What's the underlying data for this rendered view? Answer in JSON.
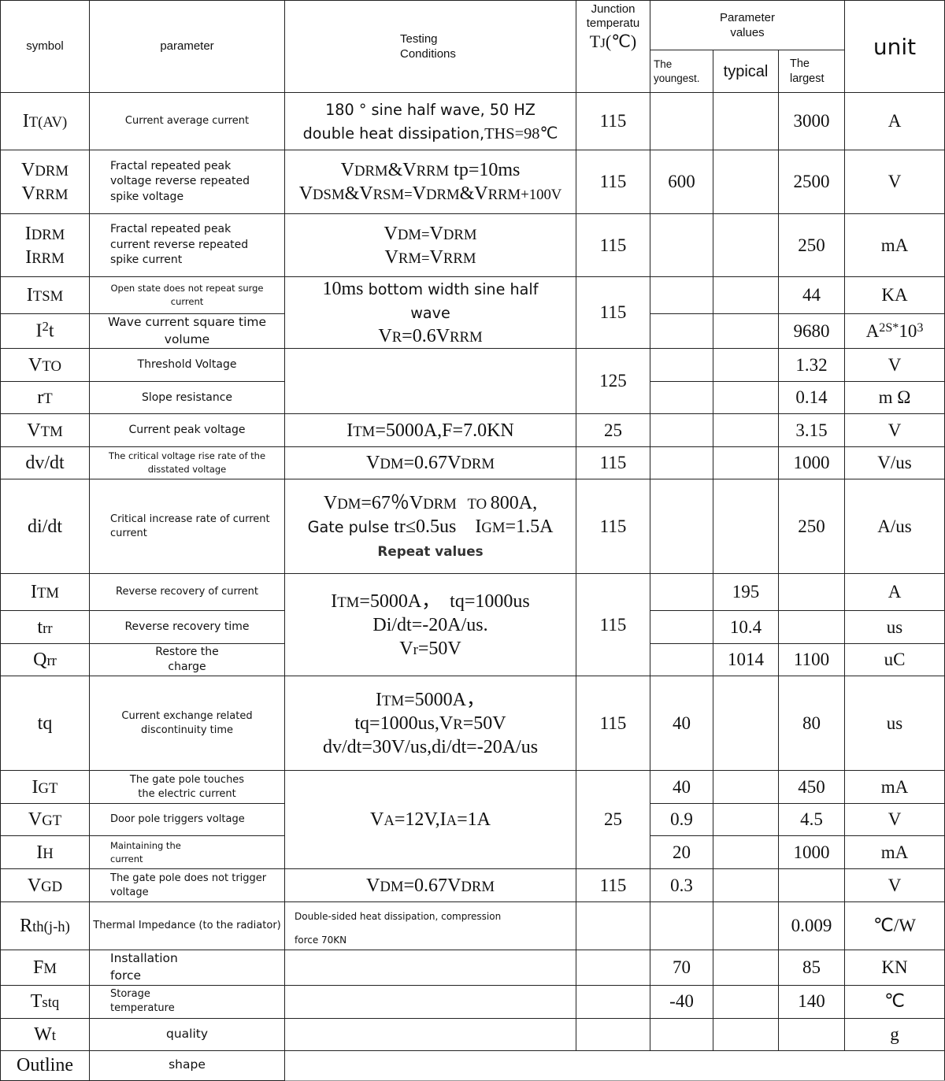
{
  "header": {
    "symbol": "symbol",
    "parameter": "parameter",
    "conditions": [
      "Testing",
      "Conditions"
    ],
    "tj": [
      "Junction",
      "temperatu"
    ],
    "tj_symbol": [
      [
        "T",
        ""
      ],
      [
        "J",
        "s"
      ],
      [
        "(℃)",
        ""
      ]
    ],
    "param_values": [
      "Parameter",
      "values"
    ],
    "min": [
      "The",
      "youngest."
    ],
    "typ": "typical",
    "max": [
      "The",
      "largest"
    ],
    "unit": "unit"
  },
  "rows": [
    {
      "symbol": [
        [
          [
            "I",
            ""
          ],
          [
            "T(AV)",
            "s"
          ]
        ]
      ],
      "parameter": [
        "Current average current"
      ],
      "conditions": [
        [
          [
            "180 ° sine half wave, 50 HZ",
            "f"
          ]
        ],
        [
          [
            "double heat dissipation,",
            "f"
          ],
          [
            "THS=98℃",
            "m"
          ]
        ]
      ],
      "tj": "115",
      "min": "",
      "typ": "",
      "max": "3000",
      "unit": [
        [
          [
            "A",
            ""
          ]
        ]
      ]
    },
    {
      "symbol": [
        [
          [
            "V",
            ""
          ],
          [
            "DRM",
            "s"
          ]
        ],
        [
          [
            "V",
            ""
          ],
          [
            "RRM",
            "s"
          ]
        ]
      ],
      "parameter": [
        "Fractal repeated peak",
        "voltage reverse repeated",
        "spike voltage"
      ],
      "conditions": [
        [
          [
            "V",
            ""
          ],
          [
            "DRM",
            "s"
          ],
          [
            "&V",
            ""
          ],
          [
            "RRM",
            "s"
          ],
          [
            " tp=10ms",
            ""
          ]
        ],
        [
          [
            "V",
            ""
          ],
          [
            "DSM",
            "s"
          ],
          [
            "&V",
            ""
          ],
          [
            "RSM=",
            "s"
          ],
          [
            "V",
            ""
          ],
          [
            "DRM",
            "s"
          ],
          [
            "&V",
            ""
          ],
          [
            "RRM+100V",
            "s"
          ]
        ]
      ],
      "tj": "115",
      "min": "600",
      "typ": "",
      "max": "2500",
      "unit": [
        [
          [
            "V",
            ""
          ]
        ]
      ]
    },
    {
      "symbol": [
        [
          [
            "I",
            ""
          ],
          [
            "DRM",
            "s"
          ]
        ],
        [
          [
            "I",
            ""
          ],
          [
            "RRM",
            "s"
          ]
        ]
      ],
      "parameter": [
        "Fractal repeated peak",
        "current reverse repeated",
        "spike current"
      ],
      "conditions": [
        [
          [
            "V",
            ""
          ],
          [
            "DM=",
            "s"
          ],
          [
            "V",
            ""
          ],
          [
            "DRM",
            "s"
          ]
        ],
        [
          [
            "V",
            ""
          ],
          [
            "RM=",
            "s"
          ],
          [
            "V",
            ""
          ],
          [
            "RRM",
            "s"
          ]
        ]
      ],
      "tj": "115",
      "min": "",
      "typ": "",
      "max": "250",
      "unit": [
        [
          [
            "mA",
            ""
          ]
        ]
      ]
    },
    {
      "symbol": [
        [
          [
            "I",
            ""
          ],
          [
            "TSM",
            "s"
          ]
        ]
      ],
      "parameter": [
        "Open state does not repeat surge current"
      ],
      "conditions": [
        [
          [
            "10ms",
            ""
          ],
          [
            " bottom width sine half",
            "f"
          ]
        ],
        [
          [
            "wave",
            "f"
          ]
        ],
        [
          [
            "V",
            ""
          ],
          [
            "R",
            "s"
          ],
          [
            "=0.6V",
            ""
          ],
          [
            "RRM",
            "s"
          ]
        ]
      ],
      "tj": "115",
      "min": "",
      "typ": "",
      "max": "44",
      "unit": [
        [
          [
            "KA",
            ""
          ]
        ]
      ]
    },
    {
      "symbol": [
        [
          [
            "I",
            ""
          ],
          [
            "2",
            "p"
          ],
          [
            "t",
            ""
          ]
        ]
      ],
      "parameter": [
        "Wave current square time volume"
      ],
      "conditions": null,
      "tj": null,
      "min": "",
      "typ": "",
      "max": "9680",
      "unit": [
        [
          [
            "A",
            ""
          ],
          [
            "2S*",
            "p"
          ],
          [
            "10",
            ""
          ],
          [
            "3",
            "p"
          ]
        ]
      ]
    },
    {
      "symbol": [
        [
          [
            "V",
            ""
          ],
          [
            "TO",
            "s"
          ]
        ]
      ],
      "parameter": [
        "Threshold  Voltage"
      ],
      "conditions": [],
      "tj": "125",
      "min": "",
      "typ": "",
      "max": "1.32",
      "unit": [
        [
          [
            "V",
            ""
          ]
        ]
      ]
    },
    {
      "symbol": [
        [
          [
            "r",
            ""
          ],
          [
            "T",
            "s"
          ]
        ]
      ],
      "parameter": [
        "Slope resistance"
      ],
      "conditions": null,
      "tj": null,
      "min": "",
      "typ": "",
      "max": "0.14",
      "unit": [
        [
          [
            "m Ω",
            ""
          ]
        ]
      ]
    },
    {
      "symbol": [
        [
          [
            "V",
            ""
          ],
          [
            "TM",
            "s"
          ]
        ]
      ],
      "parameter": [
        "Current peak voltage"
      ],
      "conditions": [
        [
          [
            "I",
            ""
          ],
          [
            "TM",
            "s"
          ],
          [
            "=5000A,F=7.0KN",
            ""
          ]
        ]
      ],
      "tj": "25",
      "min": "",
      "typ": "",
      "max": "3.15",
      "unit": [
        [
          [
            "V",
            ""
          ]
        ]
      ]
    },
    {
      "symbol": [
        [
          [
            "dv/dt",
            ""
          ]
        ]
      ],
      "parameter": [
        "The critical voltage rise rate of the",
        "disstated voltage"
      ],
      "conditions": [
        [
          [
            "V",
            ""
          ],
          [
            "DM",
            "s"
          ],
          [
            "=0.67V",
            ""
          ],
          [
            "DRM",
            "s"
          ]
        ]
      ],
      "tj": "115",
      "min": "",
      "typ": "",
      "max": "1000",
      "unit": [
        [
          [
            "V/us",
            ""
          ]
        ]
      ]
    },
    {
      "symbol": [
        [
          [
            "di/dt",
            ""
          ]
        ]
      ],
      "parameter": [
        "Critical increase rate of current",
        "current"
      ],
      "conditions": [
        [
          [
            "V",
            ""
          ],
          [
            "DM",
            "s"
          ],
          [
            "=67％V",
            ""
          ],
          [
            "DRM",
            "s"
          ],
          [
            "   TO ",
            "s"
          ],
          [
            "800A,",
            ""
          ]
        ],
        [
          [
            "Gate pulse ",
            "f"
          ],
          [
            "tr≤0.5us    I",
            ""
          ],
          [
            "GM",
            "s"
          ],
          [
            "=1.5A",
            ""
          ]
        ],
        [
          [
            "Repeat values",
            "fb"
          ]
        ]
      ],
      "tj": "115",
      "min": "",
      "typ": "",
      "max": "250",
      "unit": [
        [
          [
            "A/us",
            ""
          ]
        ]
      ]
    },
    {
      "symbol": [
        [
          [
            "I",
            ""
          ],
          [
            "TM",
            "s"
          ]
        ]
      ],
      "parameter": [
        "Reverse recovery of current"
      ],
      "conditions": [
        [
          [
            "I",
            ""
          ],
          [
            "TM",
            "s"
          ],
          [
            "=5000A，  tq=1000us",
            ""
          ]
        ],
        [
          [
            "Di/dt=-20A/us.",
            ""
          ]
        ],
        [
          [
            "V",
            ""
          ],
          [
            "r",
            "s"
          ],
          [
            "=50V",
            ""
          ]
        ]
      ],
      "tj": "115",
      "min": "",
      "typ": "195",
      "max": "",
      "unit": [
        [
          [
            "A",
            ""
          ]
        ]
      ]
    },
    {
      "symbol": [
        [
          [
            "t",
            ""
          ],
          [
            "rr",
            "s"
          ]
        ]
      ],
      "parameter": [
        "Reverse recovery time"
      ],
      "conditions": null,
      "tj": null,
      "min": "",
      "typ": "10.4",
      "max": "",
      "unit": [
        [
          [
            "us",
            ""
          ]
        ]
      ]
    },
    {
      "symbol": [
        [
          [
            "Q",
            ""
          ],
          [
            "rr",
            "s"
          ]
        ]
      ],
      "parameter": [
        "Restore the",
        "charge"
      ],
      "conditions": null,
      "tj": null,
      "min": "",
      "typ": "1014",
      "max": "1100",
      "unit": [
        [
          [
            "uC",
            ""
          ]
        ]
      ]
    },
    {
      "symbol": [
        [
          [
            "tq",
            ""
          ]
        ]
      ],
      "parameter": [
        "Current exchange related",
        "discontinuity time"
      ],
      "conditions": [
        [
          [
            "I",
            ""
          ],
          [
            "TM",
            "s"
          ],
          [
            "=5000A，",
            ""
          ]
        ],
        [
          [
            "tq=1000us,V",
            ""
          ],
          [
            "R",
            "s"
          ],
          [
            "=50V",
            ""
          ]
        ],
        [
          [
            "dv/dt=30V/us,di/dt=-20A/us",
            ""
          ]
        ]
      ],
      "tj": "115",
      "min": "40",
      "typ": "",
      "max": "80",
      "unit": [
        [
          [
            "us",
            ""
          ]
        ]
      ]
    },
    {
      "symbol": [
        [
          [
            "I",
            ""
          ],
          [
            "GT",
            "s"
          ]
        ]
      ],
      "parameter": [
        "The gate pole touches",
        "the electric current"
      ],
      "conditions": [
        [
          [
            "V",
            ""
          ],
          [
            "A",
            "s"
          ],
          [
            "=12V,I",
            ""
          ],
          [
            "A",
            "s"
          ],
          [
            "=1A",
            ""
          ]
        ]
      ],
      "tj": "25",
      "min": "40",
      "typ": "",
      "max": "450",
      "unit": [
        [
          [
            "mA",
            ""
          ]
        ]
      ]
    },
    {
      "symbol": [
        [
          [
            "V",
            ""
          ],
          [
            "GT",
            "s"
          ]
        ]
      ],
      "parameter": [
        "Door pole triggers voltage"
      ],
      "conditions": null,
      "tj": null,
      "min": "0.9",
      "typ": "",
      "max": "4.5",
      "unit": [
        [
          [
            "V",
            ""
          ]
        ]
      ]
    },
    {
      "symbol": [
        [
          [
            "I",
            ""
          ],
          [
            "H",
            "s"
          ]
        ]
      ],
      "parameter": [
        "Maintaining the",
        "current"
      ],
      "conditions": null,
      "tj": null,
      "min": "20",
      "typ": "",
      "max": "1000",
      "unit": [
        [
          [
            "mA",
            ""
          ]
        ]
      ]
    },
    {
      "symbol": [
        [
          [
            "V",
            ""
          ],
          [
            "GD",
            "s"
          ]
        ]
      ],
      "parameter": [
        "The gate pole does not trigger",
        "voltage"
      ],
      "conditions": [
        [
          [
            "V",
            ""
          ],
          [
            "DM",
            "s"
          ],
          [
            "=0.67V",
            ""
          ],
          [
            "DRM",
            "s"
          ]
        ]
      ],
      "tj": "115",
      "min": "0.3",
      "typ": "",
      "max": "",
      "unit": [
        [
          [
            "V",
            ""
          ]
        ]
      ]
    },
    {
      "symbol": [
        [
          [
            "R",
            ""
          ],
          [
            "th(j-h)",
            "s"
          ]
        ]
      ],
      "parameter": [
        "Thermal Impedance (to the radiator)"
      ],
      "conditions": [
        [
          [
            "Double-sided heat dissipation, compression",
            "fs"
          ]
        ],
        [
          [
            "force 70KN",
            "fs"
          ]
        ]
      ],
      "tj": "",
      "min": "",
      "typ": "",
      "max": "0.009",
      "unit": [
        [
          [
            "℃/W",
            ""
          ]
        ]
      ]
    },
    {
      "symbol": [
        [
          [
            "F",
            ""
          ],
          [
            "M",
            "s"
          ]
        ]
      ],
      "parameter": [
        "Installation",
        "force"
      ],
      "conditions": [],
      "tj": "",
      "min": "70",
      "typ": "",
      "max": "85",
      "unit": [
        [
          [
            "KN",
            ""
          ]
        ]
      ]
    },
    {
      "symbol": [
        [
          [
            "T",
            ""
          ],
          [
            "stq",
            "s"
          ]
        ]
      ],
      "parameter": [
        "Storage",
        "temperature"
      ],
      "conditions": [],
      "tj": "",
      "min": "-40",
      "typ": "",
      "max": "140",
      "unit": [
        [
          [
            "℃",
            ""
          ]
        ]
      ]
    },
    {
      "symbol": [
        [
          [
            "W",
            ""
          ],
          [
            "t",
            "s"
          ]
        ]
      ],
      "parameter": [
        "quality"
      ],
      "conditions": [],
      "tj": "",
      "min": "",
      "typ": "",
      "max": "",
      "unit": [
        [
          [
            "g",
            ""
          ]
        ]
      ]
    },
    {
      "symbol": [
        [
          [
            "Outline",
            ""
          ]
        ]
      ],
      "parameter": [
        "shape"
      ],
      "conditions": [],
      "tj": null,
      "min": null,
      "typ": null,
      "max": null,
      "unit": null
    }
  ]
}
